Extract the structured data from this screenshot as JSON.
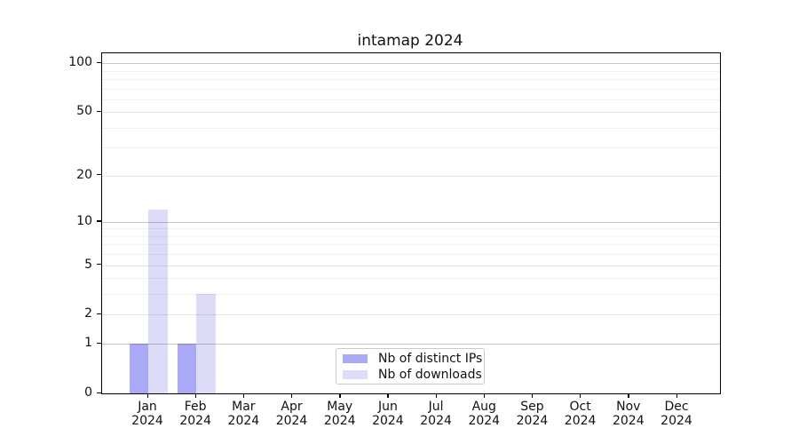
{
  "chart_data": {
    "type": "bar",
    "title": "intamap 2024",
    "categories": [
      "Jan 2024",
      "Feb 2024",
      "Mar 2024",
      "Apr 2024",
      "May 2024",
      "Jun 2024",
      "Jul 2024",
      "Aug 2024",
      "Sep 2024",
      "Oct 2024",
      "Nov 2024",
      "Dec 2024"
    ],
    "series": [
      {
        "name": "Nb of distinct IPs",
        "color": "#a9a9f8",
        "values": [
          1,
          1,
          0,
          0,
          0,
          0,
          0,
          0,
          0,
          0,
          0,
          0
        ]
      },
      {
        "name": "Nb of downloads",
        "color": "#dcdcf8",
        "values": [
          12,
          3,
          0,
          0,
          0,
          0,
          0,
          0,
          0,
          0,
          0,
          0
        ]
      }
    ],
    "xlabel": "",
    "ylabel": "",
    "y_axis": {
      "scale": "log1p",
      "min": 0,
      "max": 115,
      "tick_labels": [
        0,
        1,
        2,
        5,
        10,
        20,
        50,
        100
      ],
      "decade_gridlines": [
        1,
        10,
        100
      ],
      "mid_gridlines": [
        2,
        5,
        20,
        50
      ],
      "minor_gridlines": [
        3,
        4,
        6,
        7,
        8,
        9,
        30,
        40,
        60,
        70,
        80,
        90
      ]
    },
    "grid": true,
    "legend": {
      "position": "lower center"
    }
  }
}
